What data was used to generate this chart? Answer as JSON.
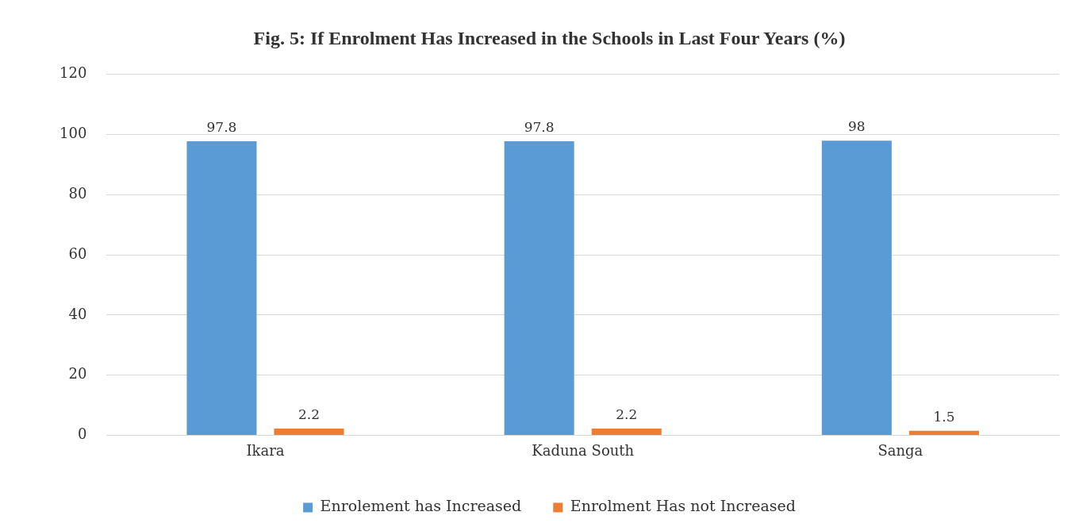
{
  "chart_data": {
    "type": "bar",
    "title": "Fig. 5: If Enrolment Has Increased in the Schools in Last Four Years (%)",
    "categories": [
      "Ikara",
      "Kaduna South",
      "Sanga"
    ],
    "series": [
      {
        "name": "Enrolement has Increased",
        "color": "#5b9bd5",
        "values": [
          97.8,
          97.8,
          98
        ]
      },
      {
        "name": "Enrolment Has not Increased",
        "color": "#ed7d31",
        "values": [
          2.2,
          2.2,
          1.5
        ]
      }
    ],
    "ylim": [
      0,
      120
    ],
    "yticks": [
      0,
      20,
      40,
      60,
      80,
      100,
      120
    ],
    "grid": "y",
    "legend": "bottom",
    "data_labels": true
  }
}
